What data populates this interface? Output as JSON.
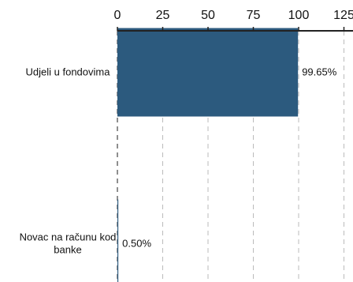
{
  "chart_data": {
    "type": "bar",
    "orientation": "horizontal",
    "title": "",
    "xlabel": "",
    "ylabel": "",
    "xlim": [
      0,
      125
    ],
    "x_ticks": [
      0,
      25,
      50,
      75,
      100,
      125
    ],
    "x_axis_position": "top",
    "grid": "vertical dashed",
    "categories": [
      [
        "Udjeli u fondovima"
      ],
      [
        "Novac na računu kod",
        "banke"
      ]
    ],
    "values": [
      99.65,
      0.5
    ],
    "data_labels": [
      "99.65%",
      "0.50%"
    ],
    "colors": {
      "bar": "#2c5a7e",
      "grid": "#bbbbbb",
      "axis": "#222222"
    }
  }
}
